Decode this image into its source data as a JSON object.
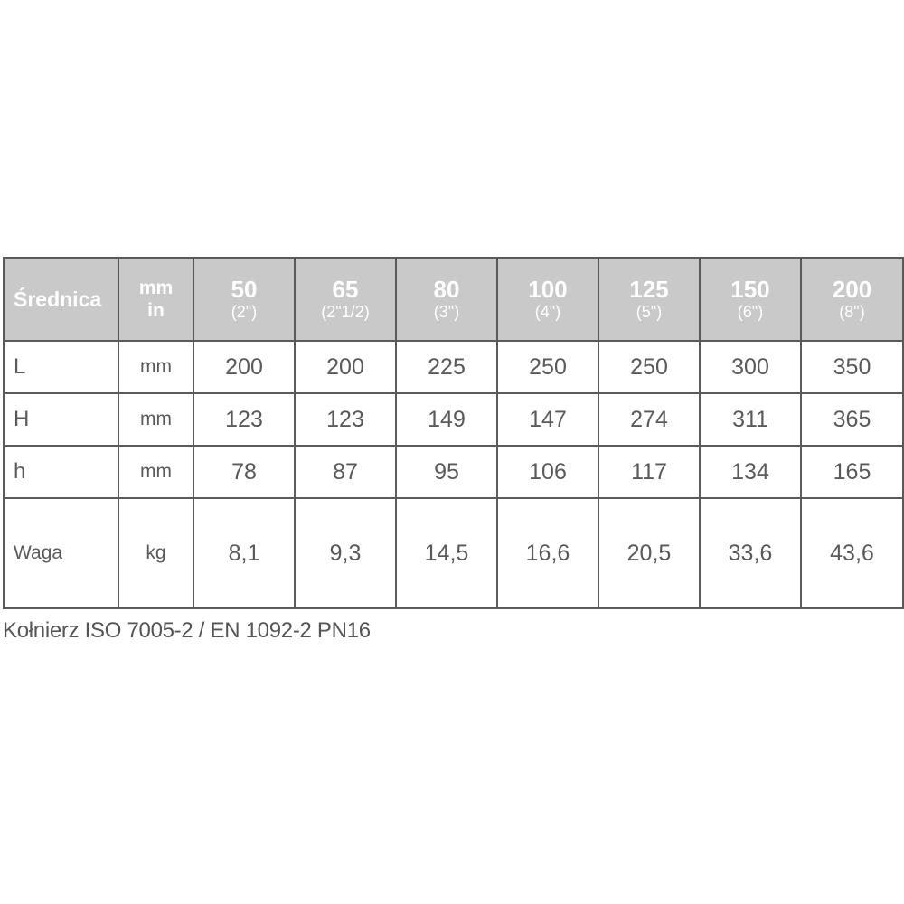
{
  "table": {
    "header": {
      "label": "Średnica",
      "unit_mm": "mm",
      "unit_in": "in",
      "columns": [
        {
          "mm": "50",
          "in": "(2\")"
        },
        {
          "mm": "65",
          "in": "(2\"1/2)"
        },
        {
          "mm": "80",
          "in": "(3\")"
        },
        {
          "mm": "100",
          "in": "(4\")"
        },
        {
          "mm": "125",
          "in": "(5\")"
        },
        {
          "mm": "150",
          "in": "(6\")"
        },
        {
          "mm": "200",
          "in": "(8\")"
        }
      ]
    },
    "rows": [
      {
        "label": "L",
        "unit": "mm",
        "values": [
          "200",
          "200",
          "225",
          "250",
          "250",
          "300",
          "350"
        ]
      },
      {
        "label": "H",
        "unit": "mm",
        "values": [
          "123",
          "123",
          "149",
          "147",
          "274",
          "311",
          "365"
        ]
      },
      {
        "label": "h",
        "unit": "mm",
        "values": [
          "78",
          "87",
          "95",
          "106",
          "117",
          "134",
          "165"
        ]
      },
      {
        "label": "Waga",
        "unit": "kg",
        "values": [
          "8,1",
          "9,3",
          "14,5",
          "16,6",
          "20,5",
          "33,6",
          "43,6"
        ]
      }
    ]
  },
  "caption": "Kołnierz ISO 7005-2 / EN 1092-2 PN16",
  "colors": {
    "header_bg": "#c9c9c9",
    "border": "#5a5a5a",
    "text": "#5a5a5a"
  }
}
